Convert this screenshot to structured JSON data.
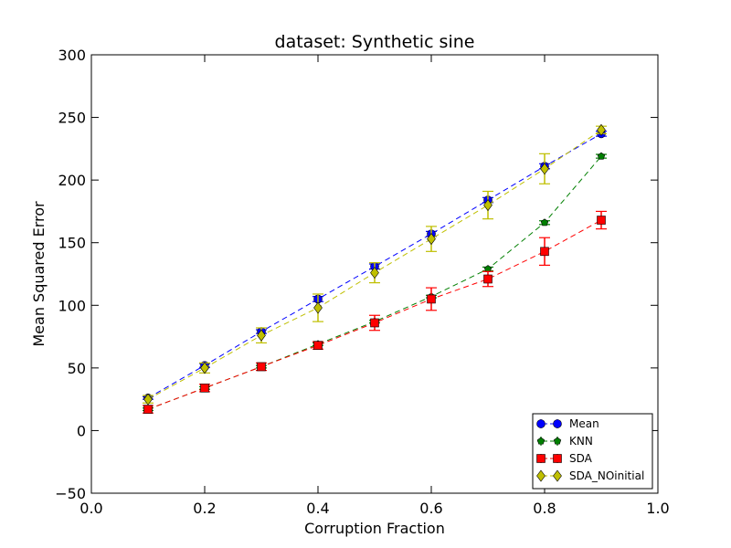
{
  "chart_data": {
    "type": "line",
    "title": "dataset: Synthetic sine",
    "xlabel": "Corruption Fraction",
    "ylabel": "Mean Squared Error",
    "xlim": [
      0.0,
      1.0
    ],
    "ylim": [
      -50,
      300
    ],
    "xticks": [
      "0.0",
      "0.2",
      "0.4",
      "0.6",
      "0.8",
      "1.0"
    ],
    "yticks": [
      "−50",
      "0",
      "50",
      "100",
      "150",
      "200",
      "250",
      "300"
    ],
    "xtick_values": [
      0.0,
      0.2,
      0.4,
      0.6,
      0.8,
      1.0
    ],
    "ytick_values": [
      -50,
      0,
      50,
      100,
      150,
      200,
      250,
      300
    ],
    "grid": false,
    "legend_position": "bottom-right",
    "x": [
      0.1,
      0.2,
      0.3,
      0.4,
      0.5,
      0.6,
      0.7,
      0.8,
      0.9
    ],
    "series": [
      {
        "name": "Mean",
        "color": "#0000ff",
        "marker": "circle",
        "values": [
          26,
          52,
          79,
          105,
          131,
          157,
          184,
          211,
          237
        ],
        "errors": [
          1,
          1.5,
          1.5,
          2,
          2,
          2,
          2,
          2,
          2
        ]
      },
      {
        "name": "KNN",
        "color": "#007f00",
        "marker": "pentagon",
        "values": [
          17,
          34,
          51,
          69,
          87,
          107,
          129,
          166,
          219
        ],
        "errors": [
          1,
          1,
          1,
          1,
          1,
          1,
          1.5,
          1.5,
          1.5
        ]
      },
      {
        "name": "SDA",
        "color": "#ff0000",
        "marker": "square",
        "values": [
          17,
          34,
          51,
          68,
          86,
          105,
          121,
          143,
          168
        ],
        "errors": [
          3,
          3,
          3,
          3,
          6,
          9,
          6,
          11,
          7
        ]
      },
      {
        "name": "SDA_NOinitial",
        "color": "#bfbf00",
        "marker": "diamond",
        "values": [
          25,
          50,
          76,
          98,
          126,
          153,
          180,
          209,
          240
        ],
        "errors": [
          3,
          4,
          6,
          11,
          8,
          10,
          11,
          12,
          3
        ]
      }
    ]
  }
}
